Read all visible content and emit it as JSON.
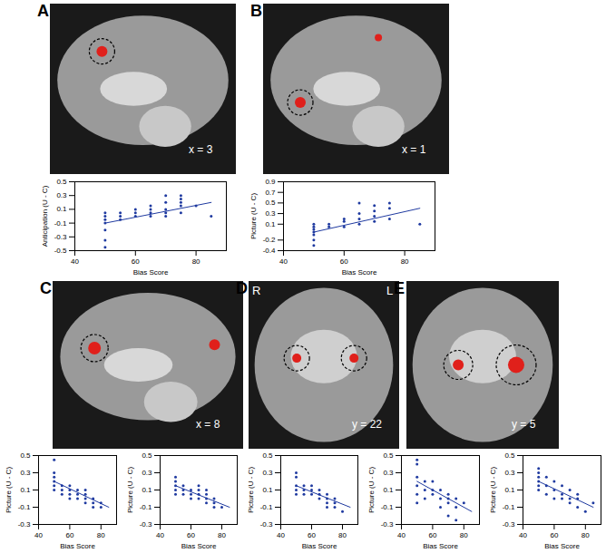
{
  "chart_data": [
    {
      "type": "scatter",
      "x_label": "Bias Score",
      "y_label": "Anticipation (U - C)",
      "color": "#1f3aa0",
      "xlim": [
        40,
        90
      ],
      "xticks": [
        40,
        60,
        80
      ],
      "ylim": [
        -0.5,
        0.5
      ],
      "yticks": [
        -0.5,
        -0.3,
        -0.1,
        0.1,
        0.3,
        0.5
      ],
      "x": [
        50,
        50,
        50,
        50,
        50,
        50,
        50,
        55,
        55,
        55,
        60,
        60,
        60,
        65,
        65,
        65,
        65,
        70,
        70,
        70,
        70,
        70,
        75,
        75,
        75,
        75,
        75,
        80,
        85
      ],
      "values": [
        -0.45,
        -0.35,
        -0.2,
        -0.1,
        -0.05,
        0,
        0.05,
        -0.05,
        0,
        0.05,
        0,
        0.05,
        0.1,
        0,
        0.05,
        0.1,
        0.15,
        0,
        0.05,
        0.1,
        0.2,
        0.3,
        0.05,
        0.15,
        0.2,
        0.25,
        0.3,
        0.15,
        0
      ],
      "fit": {
        "x": [
          50,
          85
        ],
        "values": [
          -0.1,
          0.2
        ]
      }
    },
    {
      "type": "scatter",
      "x_label": "Bias Score",
      "y_label": "Picture (U - C)",
      "color": "#1f3aa0",
      "xlim": [
        40,
        90
      ],
      "xticks": [
        40,
        60,
        80
      ],
      "ylim": [
        -0.4,
        0.9
      ],
      "yticks": [
        -0.4,
        -0.2,
        0.1,
        0.3,
        0.5,
        0.7,
        0.9
      ],
      "x": [
        50,
        50,
        50,
        50,
        50,
        50,
        50,
        55,
        55,
        60,
        60,
        60,
        65,
        65,
        65,
        65,
        70,
        70,
        70,
        70,
        75,
        75,
        75,
        85
      ],
      "values": [
        -0.3,
        -0.2,
        -0.1,
        -0.05,
        0,
        0.05,
        0.1,
        0.05,
        0.1,
        0.05,
        0.15,
        0.2,
        0.1,
        0.2,
        0.3,
        0.5,
        0.15,
        0.25,
        0.35,
        0.45,
        0.2,
        0.4,
        0.5,
        0.1
      ],
      "fit": {
        "x": [
          50,
          85
        ],
        "values": [
          -0.05,
          0.4
        ]
      }
    },
    {
      "type": "scatter",
      "x_label": "Bias Score",
      "y_label": "Picture (U - C)",
      "color": "#1f3aa0",
      "xlim": [
        40,
        90
      ],
      "xticks": [
        40,
        60,
        80
      ],
      "ylim": [
        -0.3,
        0.5
      ],
      "yticks": [
        -0.3,
        -0.1,
        0.1,
        0.3,
        0.5
      ],
      "x": [
        50,
        50,
        50,
        50,
        50,
        50,
        55,
        55,
        55,
        60,
        60,
        60,
        60,
        65,
        65,
        65,
        70,
        70,
        70,
        70,
        75,
        75,
        75,
        80,
        80
      ],
      "values": [
        0.1,
        0.15,
        0.2,
        0.25,
        0.3,
        0.45,
        0.05,
        0.1,
        0.15,
        0,
        0.05,
        0.1,
        0.15,
        0,
        0.05,
        0.1,
        -0.05,
        0,
        0.05,
        0.1,
        -0.1,
        -0.05,
        0,
        -0.05,
        -0.1
      ],
      "fit": {
        "x": [
          50,
          85
        ],
        "values": [
          0.2,
          -0.1
        ]
      }
    },
    {
      "type": "scatter",
      "x_label": "Bias Score",
      "y_label": "Picture (U - C)",
      "color": "#1f3aa0",
      "xlim": [
        40,
        90
      ],
      "xticks": [
        40,
        60,
        80
      ],
      "ylim": [
        -0.3,
        0.5
      ],
      "yticks": [
        -0.3,
        -0.1,
        0.1,
        0.3,
        0.5
      ],
      "x": [
        50,
        50,
        50,
        50,
        50,
        55,
        55,
        55,
        60,
        60,
        60,
        65,
        65,
        65,
        65,
        70,
        70,
        70,
        70,
        75,
        75,
        75,
        80
      ],
      "values": [
        0.05,
        0.1,
        0.15,
        0.2,
        0.25,
        0.05,
        0.1,
        0.15,
        0,
        0.05,
        0.1,
        0,
        0.05,
        0.1,
        0.15,
        -0.05,
        0,
        0.05,
        0.1,
        -0.1,
        -0.05,
        0,
        -0.1
      ],
      "fit": {
        "x": [
          50,
          85
        ],
        "values": [
          0.15,
          -0.1
        ]
      }
    },
    {
      "type": "scatter",
      "x_label": "Bias Score",
      "y_label": "Picture (U - C)",
      "color": "#1f3aa0",
      "xlim": [
        40,
        90
      ],
      "xticks": [
        40,
        60,
        80
      ],
      "ylim": [
        -0.3,
        0.5
      ],
      "yticks": [
        -0.3,
        -0.1,
        0.1,
        0.3,
        0.5
      ],
      "x": [
        50,
        50,
        50,
        50,
        50,
        55,
        55,
        55,
        60,
        60,
        60,
        65,
        65,
        65,
        70,
        70,
        70,
        70,
        75,
        75,
        75,
        80
      ],
      "values": [
        0.05,
        0.1,
        0.15,
        0.25,
        0.3,
        0.05,
        0.1,
        0.15,
        0.05,
        0.1,
        0.15,
        0,
        0.05,
        0.1,
        -0.05,
        0,
        0.05,
        -0.1,
        -0.05,
        0,
        -0.1,
        -0.15
      ],
      "fit": {
        "x": [
          50,
          85
        ],
        "values": [
          0.15,
          -0.1
        ]
      }
    },
    {
      "type": "scatter",
      "x_label": "Bias Score",
      "y_label": "Picture (U - C)",
      "color": "#1f3aa0",
      "xlim": [
        40,
        90
      ],
      "xticks": [
        40,
        60,
        80
      ],
      "ylim": [
        -0.3,
        0.5
      ],
      "yticks": [
        -0.3,
        -0.1,
        0.1,
        0.3,
        0.5
      ],
      "x": [
        50,
        50,
        50,
        50,
        50,
        50,
        55,
        55,
        55,
        60,
        60,
        60,
        65,
        65,
        65,
        70,
        70,
        70,
        70,
        75,
        75,
        75,
        80
      ],
      "values": [
        -0.05,
        0.05,
        0.15,
        0.25,
        0.4,
        0.45,
        0,
        0.1,
        0.2,
        0.05,
        0.1,
        0.2,
        -0.1,
        0,
        0.1,
        -0.2,
        -0.05,
        0,
        0.05,
        -0.25,
        -0.1,
        0,
        -0.05
      ],
      "fit": {
        "x": [
          50,
          85
        ],
        "values": [
          0.2,
          -0.15
        ]
      }
    },
    {
      "type": "scatter",
      "x_label": "Bias Score",
      "y_label": "Picture (U - C)",
      "color": "#1f3aa0",
      "xlim": [
        40,
        90
      ],
      "xticks": [
        40,
        60,
        80
      ],
      "ylim": [
        -0.3,
        0.5
      ],
      "yticks": [
        -0.3,
        -0.1,
        0.1,
        0.3,
        0.5
      ],
      "x": [
        50,
        50,
        50,
        50,
        50,
        50,
        55,
        55,
        55,
        60,
        60,
        60,
        65,
        65,
        65,
        70,
        70,
        70,
        75,
        75,
        75,
        80,
        85
      ],
      "values": [
        0.1,
        0.15,
        0.2,
        0.25,
        0.3,
        0.35,
        0.05,
        0.15,
        0.25,
        0,
        0.1,
        0.2,
        0,
        0.05,
        0.15,
        -0.05,
        0,
        0.1,
        -0.1,
        0,
        0.05,
        -0.15,
        -0.05
      ],
      "fit": {
        "x": [
          50,
          85
        ],
        "values": [
          0.2,
          -0.1
        ]
      }
    }
  ],
  "panels": [
    {
      "label": "A",
      "slice": "x = 3"
    },
    {
      "label": "B",
      "slice": "x = 1"
    },
    {
      "label": "C",
      "slice": "x = 8"
    },
    {
      "label": "D",
      "slice": "y = 22",
      "sides": [
        "R",
        "L"
      ]
    },
    {
      "label": "E",
      "slice": "y = 5"
    }
  ]
}
